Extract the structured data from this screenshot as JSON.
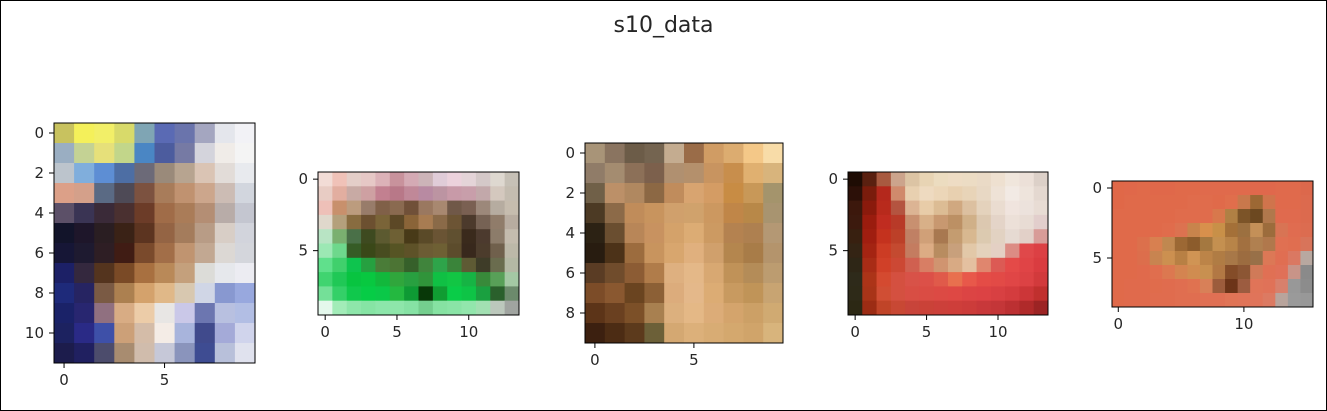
{
  "figure": {
    "title": "s10_data"
  },
  "chart_data": [
    {
      "type": "heatmap",
      "grid_size": [
        12,
        10
      ],
      "xticks": [
        0,
        5
      ],
      "yticks": [
        0,
        2,
        4,
        6,
        8,
        10
      ],
      "pixels": [
        [
          "#c8c25f",
          "#f4f05a",
          "#f2ef68",
          "#d8da6a",
          "#7fa5b4",
          "#5a6ab4",
          "#6a74ac",
          "#a4a6c0",
          "#e4e6ec",
          "#f2f2f6"
        ],
        [
          "#9aaec2",
          "#c4d294",
          "#e6e07a",
          "#c2d68a",
          "#4a86c4",
          "#4c5c9e",
          "#767aa4",
          "#d4d4dc",
          "#f0ece8",
          "#f4f4f4"
        ],
        [
          "#bcc4cc",
          "#80aedc",
          "#5d8ed4",
          "#4d6ea4",
          "#6c6a78",
          "#9a8a7a",
          "#b7a490",
          "#dac4b4",
          "#e2dcd8",
          "#e8eaee"
        ],
        [
          "#dca088",
          "#d4a08a",
          "#5a6a84",
          "#4e4a56",
          "#7c5240",
          "#a87c5a",
          "#c09270",
          "#cca68c",
          "#ccbcb4",
          "#d2d6de"
        ],
        [
          "#5c5068",
          "#3a3454",
          "#3a2a38",
          "#4a3030",
          "#6c3c28",
          "#a06c48",
          "#aa7c58",
          "#b48e74",
          "#b8aca8",
          "#c4c6d0"
        ],
        [
          "#12142a",
          "#1e162a",
          "#2a1e22",
          "#3a2216",
          "#5c3420",
          "#946444",
          "#a47c5c",
          "#b89c86",
          "#d8cec6",
          "#d2d4dc"
        ],
        [
          "#161636",
          "#1e1a30",
          "#2e1e24",
          "#401c14",
          "#7a4a2c",
          "#a26e48",
          "#c09470",
          "#c2a892",
          "#dcd8d4",
          "#d4d6dc"
        ],
        [
          "#1c2066",
          "#34283e",
          "#54341e",
          "#7a4a26",
          "#a87040",
          "#b98958",
          "#c4a07c",
          "#dcdcd8",
          "#e6e8ec",
          "#ececf2"
        ],
        [
          "#1e2a7a",
          "#262462",
          "#7a5a44",
          "#ac8050",
          "#d4a26c",
          "#e0b888",
          "#d8c8b0",
          "#d0d6e6",
          "#8898d0",
          "#98a8de"
        ],
        [
          "#1a2268",
          "#282670",
          "#907080",
          "#d8ac84",
          "#eccca8",
          "#e8e6e4",
          "#cac8e8",
          "#6c76b0",
          "#b8c0e0",
          "#b2bee4"
        ],
        [
          "#1c2260",
          "#2a2a86",
          "#3e50a8",
          "#cca078",
          "#d4bca8",
          "#f4ece6",
          "#a8b4dc",
          "#404a8c",
          "#a4aad8",
          "#d0d4ec"
        ],
        [
          "#1c1c4c",
          "#202060",
          "#4c4c6c",
          "#a88c70",
          "#d0bcac",
          "#c6c8d8",
          "#8a94bc",
          "#3e4c92",
          "#b8c0da",
          "#e0e2ee"
        ]
      ]
    },
    {
      "type": "heatmap",
      "grid_size": [
        10,
        14
      ],
      "xticks": [
        0,
        5,
        10
      ],
      "yticks": [
        0,
        5
      ],
      "pixels": [
        [
          "#f2dcd6",
          "#f0c2b8",
          "#e4cec8",
          "#e6c8c6",
          "#dcb2b8",
          "#c8929c",
          "#d4aab4",
          "#ccb4b8",
          "#e0ccd8",
          "#ecd2dc",
          "#e4d4d8",
          "#d4c8c8",
          "#ded8d0",
          "#c6c0b6"
        ],
        [
          "#e8ccc4",
          "#e2aea0",
          "#c8aaa4",
          "#cea0a2",
          "#c28090",
          "#b87888",
          "#c08898",
          "#b88aa2",
          "#bc94a2",
          "#c89aa8",
          "#c89eaa",
          "#c2a8aa",
          "#d4c8be",
          "#c4bcb0"
        ],
        [
          "#eec0b8",
          "#c8906c",
          "#bc9c7e",
          "#987c6a",
          "#806048",
          "#8a6a50",
          "#705038",
          "#9a7860",
          "#a88870",
          "#705848",
          "#7a6052",
          "#9c887a",
          "#b6aca0",
          "#c6bcae"
        ],
        [
          "#e0d8cc",
          "#b4a07c",
          "#886c40",
          "#6c5030",
          "#7a6438",
          "#5c4826",
          "#8a6438",
          "#a87c52",
          "#8a6a48",
          "#6c5434",
          "#4c3a2c",
          "#766254",
          "#907c6a",
          "#b8aca0"
        ],
        [
          "#b8e4c4",
          "#7ab070",
          "#4a7048",
          "#3e4a20",
          "#5c5a30",
          "#6e6034",
          "#483a18",
          "#5a4a28",
          "#6a5434",
          "#605030",
          "#3a2a1c",
          "#4c3a2e",
          "#8c7c6a",
          "#c4bcae"
        ],
        [
          "#9ce8b4",
          "#6ed88c",
          "#365c26",
          "#3a4818",
          "#484c20",
          "#565424",
          "#5e5228",
          "#6c5c34",
          "#6e6034",
          "#5c4c2c",
          "#38281c",
          "#4c3c2c",
          "#70604c",
          "#bcb8a8"
        ],
        [
          "#60e08c",
          "#40d06c",
          "#0ec44e",
          "#26a040",
          "#4a7c38",
          "#4c7434",
          "#36602a",
          "#40843c",
          "#2ea44a",
          "#3a843a",
          "#5e5a34",
          "#3e3c28",
          "#6a6c4e",
          "#b4b8a4"
        ],
        [
          "#40d470",
          "#20c856",
          "#08c440",
          "#08c840",
          "#12b83c",
          "#30a63c",
          "#28a040",
          "#30943a",
          "#10c044",
          "#12c644",
          "#16b444",
          "#388a3a",
          "#58a058",
          "#a4c8a4"
        ],
        [
          "#74e098",
          "#34d068",
          "#10c84c",
          "#06cc46",
          "#0ac848",
          "#24b840",
          "#0e9a34",
          "#083808",
          "#109c32",
          "#0acc48",
          "#0ec446",
          "#1aa040",
          "#2a602c",
          "#6c8a6c"
        ],
        [
          "#e4f8ec",
          "#a2ecb8",
          "#8ee6aa",
          "#86e4a4",
          "#8ce6aa",
          "#8ee6aa",
          "#86e2a4",
          "#74ce8e",
          "#86e2a2",
          "#8ae4a6",
          "#92e6ac",
          "#a2e0b2",
          "#bcc8bc",
          "#a0a4a0"
        ]
      ]
    },
    {
      "type": "heatmap",
      "grid_size": [
        10,
        10
      ],
      "xticks": [
        0,
        5
      ],
      "yticks": [
        0,
        2,
        4,
        6,
        8
      ],
      "pixels": [
        [
          "#a89478",
          "#8a7460",
          "#6c5c48",
          "#746450",
          "#c4ac90",
          "#9a6c48",
          "#d09c64",
          "#dcac70",
          "#f4c888",
          "#f8dca8"
        ],
        [
          "#907c68",
          "#a48c70",
          "#8c7058",
          "#7c604c",
          "#b09070",
          "#b4906c",
          "#c89460",
          "#c88e4c",
          "#e0b070",
          "#d8b47c"
        ],
        [
          "#706048",
          "#bc9068",
          "#b08860",
          "#8c6844",
          "#c08c5c",
          "#d8a470",
          "#d49c64",
          "#c88c44",
          "#c89858",
          "#a4946c"
        ],
        [
          "#4c3a24",
          "#8c6a48",
          "#c08c5a",
          "#c8945e",
          "#d0a06c",
          "#d0a26c",
          "#cc9860",
          "#c08648",
          "#b88848",
          "#a89470"
        ],
        [
          "#2c2214",
          "#6a4e30",
          "#b88658",
          "#c89260",
          "#d4a26a",
          "#dcac74",
          "#cc9a62",
          "#b48250",
          "#ae8050",
          "#b49874"
        ],
        [
          "#281c10",
          "#4c3218",
          "#9c6c3e",
          "#c8945e",
          "#d8a66e",
          "#e0b07e",
          "#d0a06c",
          "#b4864e",
          "#a87c48",
          "#b4946c"
        ],
        [
          "#5a3c24",
          "#704c2c",
          "#8c5c34",
          "#b07c4a",
          "#deb080",
          "#e4b888",
          "#d8a872",
          "#c09258",
          "#b48c58",
          "#bc9c70"
        ],
        [
          "#7c4c28",
          "#8a5830",
          "#6a4420",
          "#8c6036",
          "#dcac7c",
          "#e4b88a",
          "#dcac74",
          "#c89a60",
          "#c09458",
          "#c8a472"
        ],
        [
          "#5c3418",
          "#6a4020",
          "#7c5028",
          "#a88050",
          "#dcb07e",
          "#e4b886",
          "#dcac78",
          "#d4a46c",
          "#cca066",
          "#d0aa72"
        ],
        [
          "#3c2010",
          "#4c2c14",
          "#5c3a1c",
          "#6c6038",
          "#d4a872",
          "#dcb07a",
          "#d8ac74",
          "#d4a86e",
          "#d0a46a",
          "#d8b47c"
        ]
      ]
    },
    {
      "type": "heatmap",
      "grid_size": [
        10,
        14
      ],
      "xticks": [
        0,
        5,
        10
      ],
      "yticks": [
        0,
        5
      ],
      "pixels": [
        [
          "#1e0c04",
          "#5a2010",
          "#a85a40",
          "#cca48c",
          "#dcc4a4",
          "#e8d4b4",
          "#ecdcc0",
          "#eedcc4",
          "#ecdcc4",
          "#eadac6",
          "#eee0d0",
          "#f0e6dc",
          "#ece0d8",
          "#dcd0c8"
        ],
        [
          "#2c1008",
          "#7a1c0c",
          "#b4281c",
          "#d08a6c",
          "#e8d0b0",
          "#eedac0",
          "#ecd6b8",
          "#e8d0b0",
          "#e8d4b8",
          "#e8d8c4",
          "#eee2d6",
          "#f2eae4",
          "#eee4dc",
          "#e4d8d0"
        ],
        [
          "#3c180c",
          "#8a1a0c",
          "#b82a1c",
          "#b45440",
          "#dcb494",
          "#e8cca8",
          "#dcbc94",
          "#d0a880",
          "#dcc0a0",
          "#e4d2bc",
          "#eadcd0",
          "#f0e4de",
          "#ece2dc",
          "#e8dcd4"
        ],
        [
          "#3c1a0e",
          "#9a1c0e",
          "#c02c20",
          "#b83a28",
          "#c89070",
          "#d8b088",
          "#c89870",
          "#bc9064",
          "#d0b088",
          "#dcc8b0",
          "#e4d4c8",
          "#ece0d8",
          "#e8dcd4",
          "#e2cecc"
        ],
        [
          "#382010",
          "#a01e10",
          "#c4321e",
          "#bc4028",
          "#c08064",
          "#d0a078",
          "#a87850",
          "#c49c70",
          "#d8b890",
          "#dccab0",
          "#e2d2c2",
          "#e6dad2",
          "#e2d0c8",
          "#d89c98"
        ],
        [
          "#342414",
          "#a42412",
          "#cc3c24",
          "#c44a30",
          "#c47c60",
          "#dcac84",
          "#b88c60",
          "#c8a07c",
          "#e2c8a8",
          "#e4d2bc",
          "#e4d0c4",
          "#dc8c84",
          "#e0484a",
          "#dc4044"
        ],
        [
          "#2e2616",
          "#a82c16",
          "#d04028",
          "#cc4834",
          "#d06050",
          "#d87e64",
          "#d09470",
          "#d8aa84",
          "#e4c0a0",
          "#e0866e",
          "#dc5a54",
          "#e44a48",
          "#e04446",
          "#da3c40"
        ],
        [
          "#2e2a1a",
          "#ac3418",
          "#d44a30",
          "#d45040",
          "#d85248",
          "#dc5048",
          "#e05a4a",
          "#e8704e",
          "#e8584a",
          "#e44c46",
          "#e24a46",
          "#e04646",
          "#dc4244",
          "#d23a3c"
        ],
        [
          "#2e2a18",
          "#a83418",
          "#d04e34",
          "#d45040",
          "#d84e44",
          "#da4c44",
          "#dc4a44",
          "#de4844",
          "#dc4444",
          "#dc4244",
          "#d84042",
          "#d43c3e",
          "#cc3638",
          "#c0302e"
        ],
        [
          "#2c2814",
          "#9c2c14",
          "#c04428",
          "#c84834",
          "#c8443a",
          "#ca4238",
          "#cc403a",
          "#ce3e3a",
          "#cc3c3a",
          "#c8383a",
          "#c43638",
          "#bc3032",
          "#b02a2a",
          "#9c2424"
        ]
      ]
    },
    {
      "type": "heatmap",
      "grid_size": [
        9,
        16
      ],
      "xticks": [
        0,
        10
      ],
      "yticks": [
        0,
        5
      ],
      "pixels": [
        [
          "#e06848",
          "#e0684a",
          "#e06a4a",
          "#e0684a",
          "#e0684a",
          "#e06a4a",
          "#e06a4a",
          "#e06a4c",
          "#e06a4c",
          "#e06a4c",
          "#e06a4c",
          "#e0684c",
          "#e0684c",
          "#e06a4c",
          "#e06a4c",
          "#dc684c"
        ],
        [
          "#e06848",
          "#e06a4a",
          "#e06a4a",
          "#e06a4a",
          "#e06a4a",
          "#e06a4a",
          "#e06c4c",
          "#e06c4c",
          "#e06a4a",
          "#e06e4c",
          "#c8784c",
          "#9c6834",
          "#d0744c",
          "#e06a4c",
          "#e06a4c",
          "#dc6a4e"
        ],
        [
          "#e06a4a",
          "#e06a4a",
          "#e06a4a",
          "#e06a4a",
          "#e06a4a",
          "#e06c4c",
          "#e06c4c",
          "#e06c4c",
          "#d8784c",
          "#b08044",
          "#7c5428",
          "#6c4820",
          "#b0784c",
          "#e06a4e",
          "#e06a4e",
          "#dc6a4e"
        ],
        [
          "#e06a4a",
          "#e06a4a",
          "#e06a4a",
          "#e06a4a",
          "#e06c4c",
          "#dc7250",
          "#c8844c",
          "#d8904c",
          "#c89048",
          "#a47038",
          "#9c7040",
          "#c49058",
          "#9c6c3c",
          "#d87454",
          "#e06c50",
          "#dc6c50"
        ],
        [
          "#e06a4a",
          "#e06a4a",
          "#dc704c",
          "#d88050",
          "#c08850",
          "#9c6834",
          "#8c5c2c",
          "#a47840",
          "#c49050",
          "#b88448",
          "#a27040",
          "#b08050",
          "#b0784c",
          "#e07052",
          "#e06e50",
          "#d8745a"
        ],
        [
          "#e06a4a",
          "#e06a4a",
          "#dc6e4c",
          "#c88450",
          "#cc9050",
          "#b88044",
          "#d09454",
          "#bc8448",
          "#b07c44",
          "#a87848",
          "#9c6c40",
          "#987048",
          "#dc7856",
          "#e06e52",
          "#da7862",
          "#b8a8a0"
        ],
        [
          "#e06a4a",
          "#e06a4a",
          "#e06a4c",
          "#e06e4e",
          "#dc7850",
          "#d48450",
          "#d08c50",
          "#c89050",
          "#b27844",
          "#844c28",
          "#8c5634",
          "#d07a58",
          "#e07054",
          "#e07058",
          "#c89488",
          "#8a8a8a"
        ],
        [
          "#e06a4a",
          "#e06a4c",
          "#e06a4c",
          "#e06c4c",
          "#e06c4e",
          "#e06e50",
          "#e07250",
          "#d88058",
          "#9c5c3c",
          "#6c3418",
          "#9c5c40",
          "#e07458",
          "#e07258",
          "#d8806c",
          "#989898",
          "#8c8c8c"
        ],
        [
          "#e06a4a",
          "#e06a4c",
          "#e06a4c",
          "#e06c4e",
          "#e06c4e",
          "#e06e50",
          "#e06e50",
          "#e07054",
          "#e07054",
          "#e07456",
          "#e07458",
          "#e0745a",
          "#dc7a62",
          "#b8a49c",
          "#9a9a9a",
          "#989898"
        ]
      ]
    }
  ]
}
